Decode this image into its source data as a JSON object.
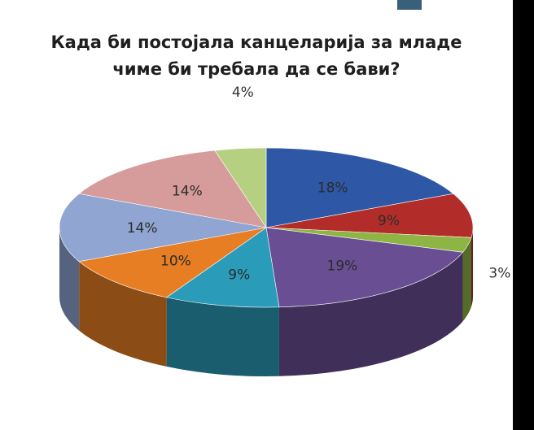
{
  "chart_data": {
    "type": "pie",
    "title": "Када би постојала канцеларија за младе\nчиме би требала да се бави?",
    "slices": [
      {
        "label": "18%",
        "value": 18,
        "color": "#2e58a6"
      },
      {
        "label": "9%",
        "value": 9,
        "color": "#b22d2a"
      },
      {
        "label": "3%",
        "value": 3,
        "color": "#8eb443"
      },
      {
        "label": "19%",
        "value": 19,
        "color": "#6a4e94"
      },
      {
        "label": "9%",
        "value": 9,
        "color": "#2a9bb8"
      },
      {
        "label": "10%",
        "value": 10,
        "color": "#e87e24"
      },
      {
        "label": "14%",
        "value": 14,
        "color": "#90a5d2"
      },
      {
        "label": "14%",
        "value": 14,
        "color": "#d69c9b"
      },
      {
        "label": "4%",
        "value": 4,
        "color": "#b6d081"
      }
    ]
  }
}
